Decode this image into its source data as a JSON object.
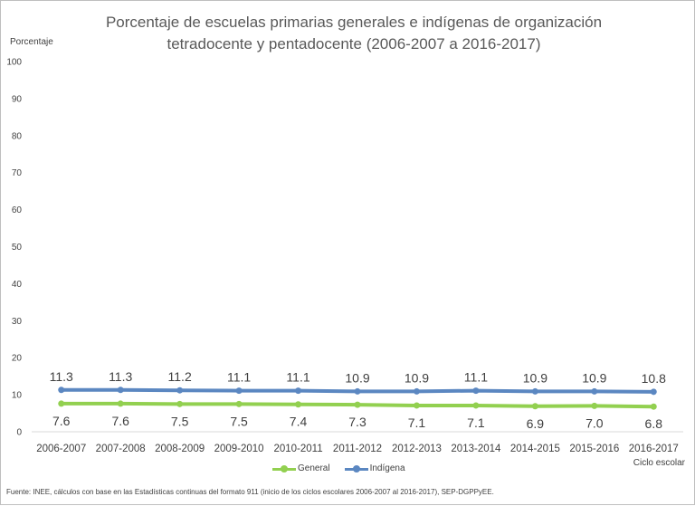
{
  "chart_data": {
    "type": "line",
    "title": "Porcentaje de escuelas primarias  generales e indígenas de organización tetradocente y pentadocente  (2006-2007 a 2016-2017)",
    "ylabel": "Porcentaje",
    "xlabel": "Ciclo escolar",
    "ylim": [
      0,
      100
    ],
    "yticks": [
      0,
      10,
      20,
      30,
      40,
      50,
      60,
      70,
      80,
      90,
      100
    ],
    "grid": false,
    "legend": "bottom",
    "categories": [
      "2006-2007",
      "2007-2008",
      "2008-2009",
      "2009-2010",
      "2010-2011",
      "2011-2012",
      "2012-2013",
      "2013-2014",
      "2014-2015",
      "2015-2016",
      "2016-2017"
    ],
    "series": [
      {
        "name": "General",
        "color": "#92d050",
        "values": [
          7.6,
          7.6,
          7.5,
          7.5,
          7.4,
          7.3,
          7.1,
          7.1,
          6.9,
          7.0,
          6.8
        ],
        "labels": [
          "7.6",
          "7.6",
          "7.5",
          "7.5",
          "7.4",
          "7.3",
          "7.1",
          "7.1",
          "6.9",
          "7.0",
          "6.8"
        ],
        "label_position": "below"
      },
      {
        "name": "Indígena",
        "color": "#5b87c1",
        "values": [
          11.3,
          11.3,
          11.2,
          11.1,
          11.1,
          10.9,
          10.9,
          11.1,
          10.9,
          10.9,
          10.8
        ],
        "labels": [
          "11.3",
          "11.3",
          "11.2",
          "11.1",
          "11.1",
          "10.9",
          "10.9",
          "11.1",
          "10.9",
          "10.9",
          "10.8"
        ],
        "label_position": "above"
      }
    ]
  },
  "source_note": "Fuente: INEE, cálculos con base en las Estadísticas continuas del formato 911 (inicio de los ciclos escolares 2006-2007 al 2016-2017), SEP-DGPPyEE."
}
